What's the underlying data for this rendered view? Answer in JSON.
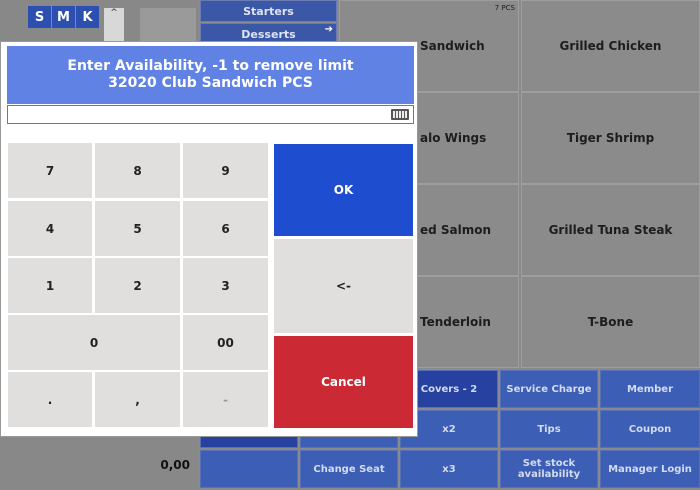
{
  "background": {
    "size_buttons": [
      "S",
      "M",
      "K"
    ],
    "scroll_up_label": "^",
    "total": "0,00",
    "categories": [
      "Starters",
      "Desserts"
    ],
    "products": [
      {
        "name": "Club Sandwich",
        "visible": "Sandwich",
        "tag": "7 PCS"
      },
      {
        "name": "Grilled Chicken",
        "visible": "Grilled Chicken",
        "tag": ""
      },
      {
        "name": "Buffalo Wings",
        "visible": "alo Wings",
        "tag": ""
      },
      {
        "name": "Tiger Shrimp",
        "visible": "Tiger Shrimp",
        "tag": ""
      },
      {
        "name": "Grilled Salmon",
        "visible": "ed Salmon",
        "tag": ""
      },
      {
        "name": "Grilled Tuna Steak",
        "visible": "Grilled Tuna Steak",
        "tag": ""
      },
      {
        "name": "Tenderloin",
        "visible": "Tenderloin",
        "tag": ""
      },
      {
        "name": "T-Bone",
        "visible": "T-Bone",
        "tag": ""
      }
    ],
    "functions": {
      "covers": "Covers - 2",
      "service_charge": "Service Charge",
      "member": "Member",
      "x2": "x2",
      "tips": "Tips",
      "coupon": "Coupon",
      "change_seat": "Change Seat",
      "x3": "x3",
      "set_stock": "Set stock availability",
      "manager_login": "Manager Login"
    }
  },
  "dialog": {
    "title_line1": "Enter Availability, -1 to remove limit",
    "title_line2": "32020 Club Sandwich PCS",
    "input_value": "",
    "keys": {
      "k7": "7",
      "k8": "8",
      "k9": "9",
      "k4": "4",
      "k5": "5",
      "k6": "6",
      "k1": "1",
      "k2": "2",
      "k3": "3",
      "k0": "0",
      "k00": "00",
      "dot": ".",
      "comma": ",",
      "minus": "-"
    },
    "ok_label": "OK",
    "backspace_label": "<-",
    "cancel_label": "Cancel",
    "colors": {
      "ok": "#1e4ecf",
      "cancel": "#cb2a34",
      "header": "#5f82e4"
    }
  }
}
